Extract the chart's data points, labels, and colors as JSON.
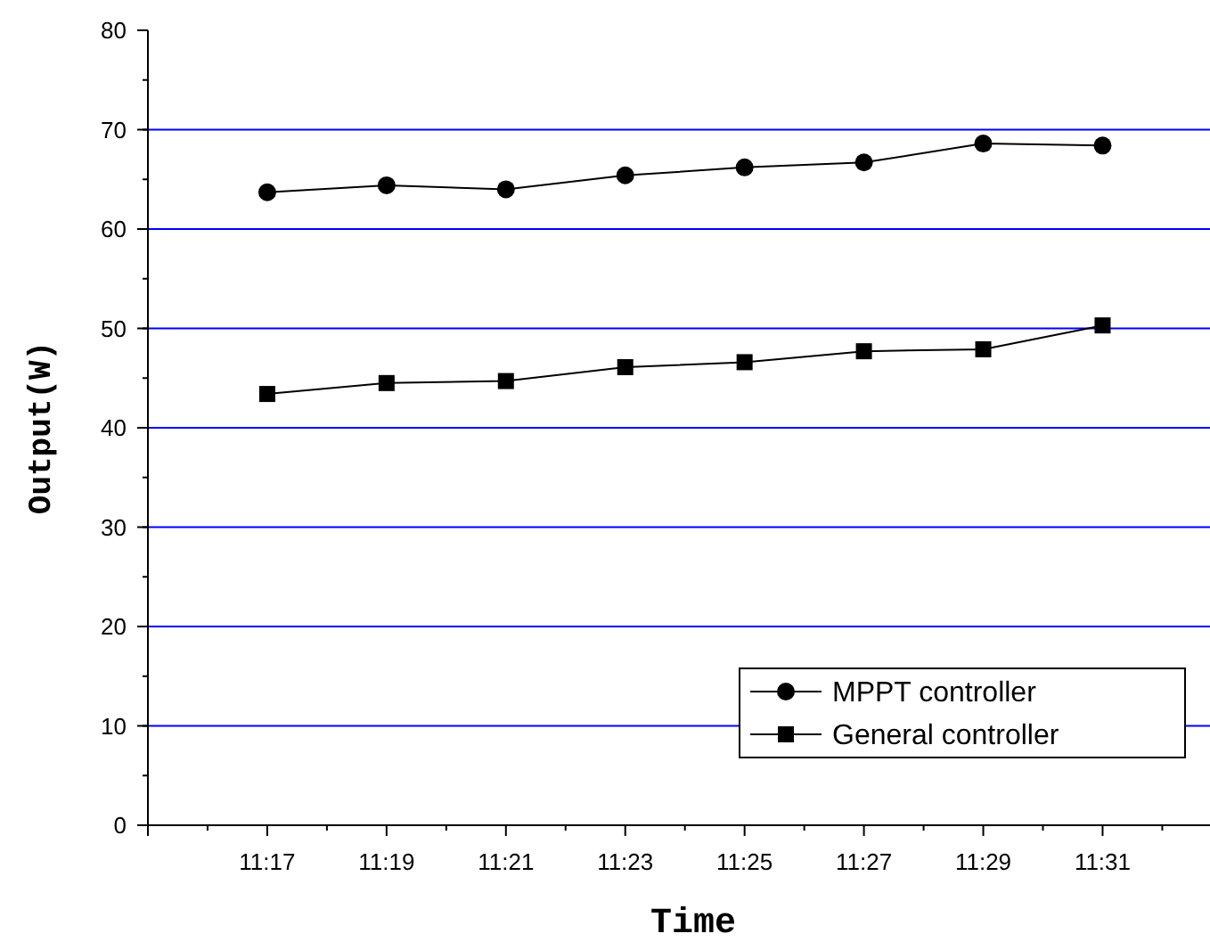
{
  "chart_data": {
    "type": "line",
    "xlabel": "Time",
    "ylabel": "Output(W)",
    "categories": [
      "11:17",
      "11:19",
      "11:21",
      "11:23",
      "11:25",
      "11:27",
      "11:29",
      "11:31"
    ],
    "series": [
      {
        "name": "MPPT controller",
        "color": "#000000",
        "marker": "circle",
        "values": [
          63.7,
          64.4,
          64.0,
          65.4,
          66.2,
          66.7,
          68.6,
          68.4
        ]
      },
      {
        "name": "General controller",
        "color": "#000000",
        "marker": "square",
        "values": [
          43.4,
          44.5,
          44.7,
          46.1,
          46.6,
          47.7,
          47.9,
          50.3
        ]
      }
    ],
    "ylim": [
      0,
      80
    ],
    "yticks": [
      0,
      10,
      20,
      30,
      40,
      50,
      60,
      70,
      80
    ],
    "grid": "y",
    "legend": "bottom right",
    "line_style": "solid"
  }
}
